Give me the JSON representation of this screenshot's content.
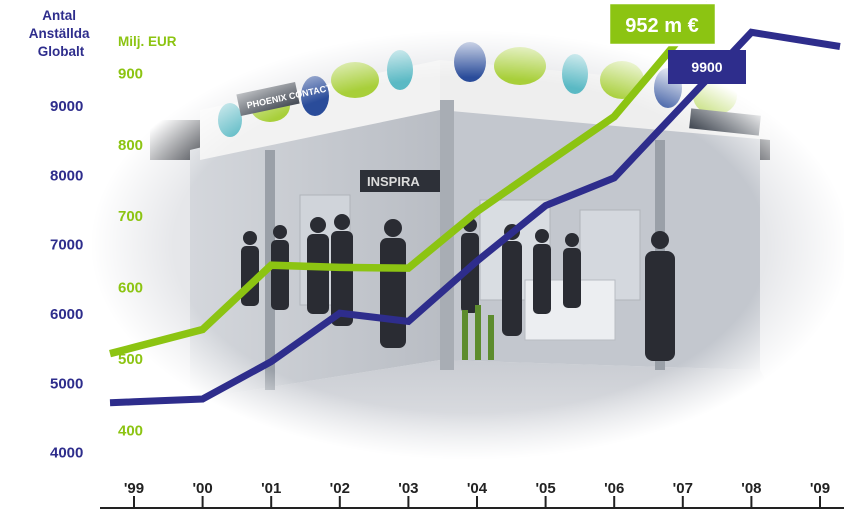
{
  "colors": {
    "employees": "#2e2d8c",
    "revenue": "#8cc412",
    "axis": "#222222"
  },
  "labels": {
    "employees_axis_title": [
      "Antal",
      "Anställda",
      "Globalt"
    ],
    "revenue_axis_title": "Milj. EUR",
    "revenue_callout": "952 m €",
    "employees_callout": "9900"
  },
  "background": {
    "description": "photo-trade-fair-booth",
    "booth_signs": [
      "PHOENIX CONTACT",
      "INSPIRA"
    ]
  },
  "chart_data": {
    "type": "line",
    "categories": [
      "'99",
      "'00",
      "'01",
      "'02",
      "'03",
      "'04",
      "'05",
      "'06",
      "'07",
      "'08",
      "'09"
    ],
    "employees_axis": {
      "title": "Antal Anställda Globalt",
      "ticks": [
        4000,
        5000,
        6000,
        7000,
        8000,
        9000
      ],
      "range": [
        3650,
        10400
      ]
    },
    "revenue_axis": {
      "title": "Milj. EUR",
      "ticks": [
        400,
        500,
        600,
        700,
        800,
        900
      ],
      "range": [
        335,
        990
      ]
    },
    "series": [
      {
        "axis": "employees",
        "points": [
          {
            "x": "'99",
            "y": 4720
          },
          {
            "x": "'00",
            "y": 4760
          },
          {
            "x": "'01",
            "y": 5300
          },
          {
            "x": "'02",
            "y": 6000
          },
          {
            "x": "'03",
            "y": 5880
          },
          {
            "x": "'04",
            "y": 6750
          },
          {
            "x": "'05",
            "y": 7550
          },
          {
            "x": "'06",
            "y": 7950
          },
          {
            "x": "'07",
            "y": 9000
          },
          {
            "x": "'08",
            "y": 10050
          },
          {
            "x": "'09",
            "y": 9900
          }
        ]
      },
      {
        "axis": "revenue",
        "points": [
          {
            "x": "'99",
            "y": 515
          },
          {
            "x": "'00",
            "y": 540
          },
          {
            "x": "'01",
            "y": 630
          },
          {
            "x": "'02",
            "y": 627
          },
          {
            "x": "'03",
            "y": 626
          },
          {
            "x": "'04",
            "y": 705
          },
          {
            "x": "'05",
            "y": 772
          },
          {
            "x": "'06",
            "y": 838
          },
          {
            "x": "'07",
            "y": 952
          }
        ]
      }
    ],
    "annotations": [
      "952 m €",
      "9900"
    ],
    "grid": false,
    "legend": "none"
  }
}
